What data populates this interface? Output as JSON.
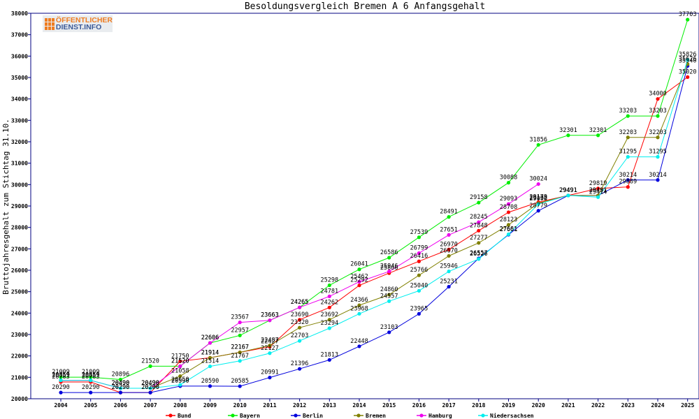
{
  "chart_data": {
    "type": "line",
    "title": "Besoldungsvergleich Bremen A 6 Anfangsgehalt",
    "ylabel": "Bruttojahresgehalt zum Stichtag 31.10.",
    "xlabel": "",
    "ylim": [
      20000,
      38000
    ],
    "yticks": [
      20000,
      21000,
      22000,
      23000,
      24000,
      25000,
      26000,
      27000,
      28000,
      29000,
      30000,
      31000,
      32000,
      33000,
      34000,
      35000,
      36000,
      37000,
      38000
    ],
    "categories": [
      "2004",
      "2005",
      "2006",
      "2007",
      "2008",
      "2009",
      "2010",
      "2011",
      "2012",
      "2013",
      "2014",
      "2015",
      "2016",
      "2017",
      "2018",
      "2019",
      "2020",
      "2021",
      "2022",
      "2023",
      "2024",
      "2025"
    ],
    "grid": false,
    "legend_position": "bottom",
    "series": [
      {
        "name": "Bund",
        "color": "#ff0000",
        "values": [
          20783,
          20783,
          20290,
          20290,
          21750,
          21914,
          22167,
          22427,
          23690,
          24262,
          25292,
          25866,
          26416,
          26970,
          27848,
          28708,
          29179,
          29491,
          29819,
          29889,
          34000,
          35020
        ]
      },
      {
        "name": "Bayern",
        "color": "#00ee00",
        "values": [
          21009,
          21009,
          20896,
          21520,
          21520,
          22606,
          22957,
          23663,
          24265,
          25298,
          26041,
          26586,
          27539,
          28491,
          29158,
          30088,
          31856,
          32301,
          32301,
          33203,
          33203,
          37703
        ]
      },
      {
        "name": "Berlin",
        "color": "#0000dd",
        "values": [
          20290,
          20290,
          20290,
          20290,
          20590,
          20590,
          20585,
          20991,
          21396,
          21813,
          22448,
          23103,
          23965,
          25231,
          26557,
          27661,
          28779,
          29491,
          29491,
          30214,
          30214,
          35540
        ]
      },
      {
        "name": "Bremen",
        "color": "#808000",
        "values": [
          20859,
          20859,
          20490,
          20490,
          21058,
          21914,
          22167,
          22487,
          23320,
          23692,
          24366,
          24860,
          25766,
          26670,
          27277,
          28123,
          29132,
          29491,
          29491,
          32203,
          32203,
          35626
        ]
      },
      {
        "name": "Hamburg",
        "color": "#ee00ee",
        "values": [
          20859,
          20859,
          20490,
          20490,
          21520,
          22606,
          23567,
          23663,
          24265,
          24781,
          25462,
          25946,
          26799,
          27651,
          28245,
          29093,
          30024,
          null,
          null,
          null,
          null,
          null
        ]
      },
      {
        "name": "Niedersachsen",
        "color": "#00eeee",
        "values": [
          20859,
          20859,
          20490,
          20490,
          20650,
          21514,
          21767,
          22127,
          22703,
          23294,
          23968,
          24557,
          25040,
          25946,
          26526,
          27681,
          29090,
          29491,
          29414,
          31295,
          31295,
          35826
        ]
      }
    ]
  },
  "logo": {
    "line1": "ÖFFENTLICHER",
    "line2": "DIENST.INFO"
  }
}
